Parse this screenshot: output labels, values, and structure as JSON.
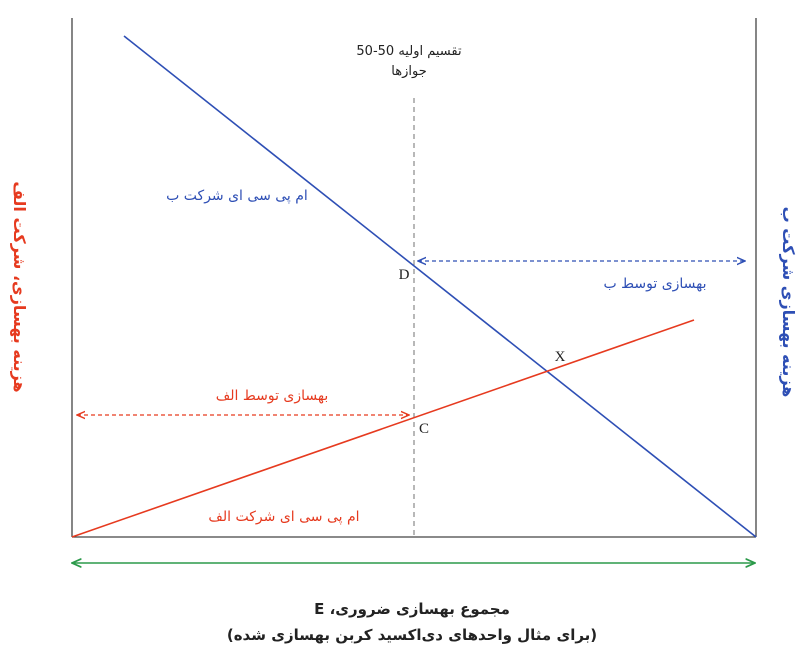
{
  "colors": {
    "firm_a": "#e63a1f",
    "firm_b": "#2e4fb5",
    "total_axis": "#2c9a4a",
    "axis": "#444444",
    "guide": "#888888"
  },
  "labels": {
    "initial_split_line1": "تقسیم اولیه 50-50",
    "initial_split_line2": "جوازها",
    "mpc_b": "ام پی سی ای شرکت ب",
    "mpc_a": "ام پی سی ای شرکت الف",
    "abatement_by_b": "بهسازی توسط ب",
    "abatement_by_a": "بهسازی توسط الف",
    "point_d": "D",
    "point_c": "C",
    "point_x": "X",
    "left_axis": "هزینه بهسازی، شرکت الف",
    "right_axis": "هزینه بهسازی شرکت ب",
    "x_axis_line1": "مجموع بهسازی ضروری، E",
    "x_axis_line2": "(برای مثال واحدهای دی‌اکسید کربن بهسازی شده)"
  },
  "icons": {
    "arrow_heads": "arrowhead"
  }
}
